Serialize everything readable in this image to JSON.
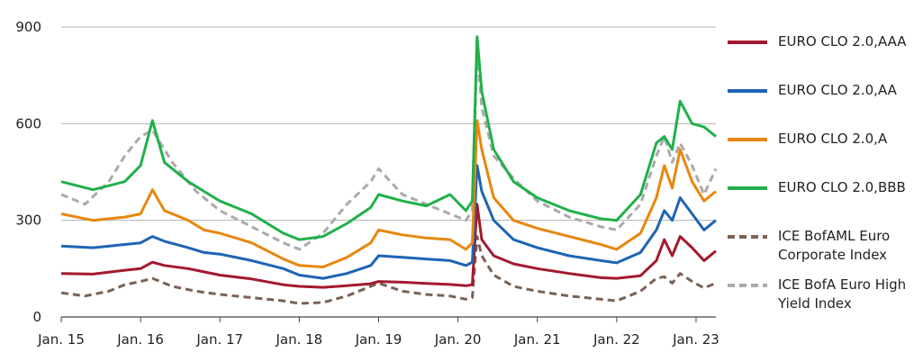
{
  "chart_data": {
    "type": "line",
    "x_tick_labels": [
      "Jan. 15",
      "Jan. 16",
      "Jan. 17",
      "Jan. 18",
      "Jan. 19",
      "Jan. 20",
      "Jan. 21",
      "Jan. 22",
      "Jan. 23"
    ],
    "x_range": [
      2015.0,
      2023.25
    ],
    "y_ticks": [
      0,
      300,
      600,
      900
    ],
    "ylim": [
      0,
      900
    ],
    "grid": "horizontal",
    "legend_position": "right",
    "series": [
      {
        "name": "EURO CLO 2.0,AAA",
        "color": "#a3192f",
        "dash": "solid",
        "points": [
          [
            2015.0,
            135
          ],
          [
            2015.4,
            133
          ],
          [
            2015.8,
            145
          ],
          [
            2016.0,
            150
          ],
          [
            2016.15,
            170
          ],
          [
            2016.3,
            160
          ],
          [
            2016.6,
            150
          ],
          [
            2016.8,
            140
          ],
          [
            2017.0,
            130
          ],
          [
            2017.4,
            118
          ],
          [
            2017.8,
            100
          ],
          [
            2018.0,
            95
          ],
          [
            2018.3,
            92
          ],
          [
            2018.6,
            97
          ],
          [
            2018.9,
            103
          ],
          [
            2019.0,
            110
          ],
          [
            2019.3,
            108
          ],
          [
            2019.6,
            104
          ],
          [
            2019.9,
            101
          ],
          [
            2020.1,
            97
          ],
          [
            2020.18,
            100
          ],
          [
            2020.24,
            350
          ],
          [
            2020.3,
            240
          ],
          [
            2020.45,
            190
          ],
          [
            2020.7,
            165
          ],
          [
            2021.0,
            150
          ],
          [
            2021.4,
            135
          ],
          [
            2021.8,
            122
          ],
          [
            2022.0,
            120
          ],
          [
            2022.3,
            128
          ],
          [
            2022.5,
            175
          ],
          [
            2022.6,
            240
          ],
          [
            2022.7,
            190
          ],
          [
            2022.8,
            250
          ],
          [
            2022.95,
            215
          ],
          [
            2023.1,
            175
          ],
          [
            2023.25,
            205
          ]
        ]
      },
      {
        "name": "EURO CLO 2.0,AA",
        "color": "#1e64b4",
        "dash": "solid",
        "points": [
          [
            2015.0,
            220
          ],
          [
            2015.4,
            215
          ],
          [
            2015.8,
            225
          ],
          [
            2016.0,
            230
          ],
          [
            2016.15,
            250
          ],
          [
            2016.3,
            235
          ],
          [
            2016.6,
            215
          ],
          [
            2016.8,
            200
          ],
          [
            2017.0,
            195
          ],
          [
            2017.4,
            175
          ],
          [
            2017.8,
            150
          ],
          [
            2018.0,
            130
          ],
          [
            2018.3,
            120
          ],
          [
            2018.6,
            135
          ],
          [
            2018.9,
            160
          ],
          [
            2019.0,
            190
          ],
          [
            2019.3,
            185
          ],
          [
            2019.6,
            180
          ],
          [
            2019.9,
            175
          ],
          [
            2020.1,
            160
          ],
          [
            2020.18,
            170
          ],
          [
            2020.24,
            470
          ],
          [
            2020.3,
            390
          ],
          [
            2020.45,
            300
          ],
          [
            2020.7,
            240
          ],
          [
            2021.0,
            215
          ],
          [
            2021.4,
            190
          ],
          [
            2021.8,
            175
          ],
          [
            2022.0,
            168
          ],
          [
            2022.3,
            200
          ],
          [
            2022.5,
            270
          ],
          [
            2022.6,
            330
          ],
          [
            2022.7,
            300
          ],
          [
            2022.8,
            370
          ],
          [
            2022.95,
            320
          ],
          [
            2023.1,
            270
          ],
          [
            2023.25,
            300
          ]
        ]
      },
      {
        "name": "EURO CLO 2.0,A",
        "color": "#e8870f",
        "dash": "solid",
        "points": [
          [
            2015.0,
            320
          ],
          [
            2015.4,
            300
          ],
          [
            2015.8,
            310
          ],
          [
            2016.0,
            320
          ],
          [
            2016.15,
            395
          ],
          [
            2016.3,
            330
          ],
          [
            2016.6,
            300
          ],
          [
            2016.8,
            270
          ],
          [
            2017.0,
            260
          ],
          [
            2017.4,
            230
          ],
          [
            2017.8,
            180
          ],
          [
            2018.0,
            160
          ],
          [
            2018.3,
            155
          ],
          [
            2018.6,
            185
          ],
          [
            2018.9,
            230
          ],
          [
            2019.0,
            270
          ],
          [
            2019.3,
            255
          ],
          [
            2019.6,
            245
          ],
          [
            2019.9,
            240
          ],
          [
            2020.1,
            210
          ],
          [
            2020.18,
            230
          ],
          [
            2020.24,
            610
          ],
          [
            2020.3,
            520
          ],
          [
            2020.45,
            370
          ],
          [
            2020.7,
            300
          ],
          [
            2021.0,
            275
          ],
          [
            2021.4,
            250
          ],
          [
            2021.8,
            225
          ],
          [
            2022.0,
            210
          ],
          [
            2022.3,
            260
          ],
          [
            2022.5,
            370
          ],
          [
            2022.6,
            470
          ],
          [
            2022.7,
            400
          ],
          [
            2022.8,
            520
          ],
          [
            2022.95,
            420
          ],
          [
            2023.1,
            360
          ],
          [
            2023.25,
            390
          ]
        ]
      },
      {
        "name": "EURO CLO 2.0,BBB",
        "color": "#21b04b",
        "dash": "solid",
        "points": [
          [
            2015.0,
            420
          ],
          [
            2015.4,
            395
          ],
          [
            2015.8,
            420
          ],
          [
            2016.0,
            470
          ],
          [
            2016.15,
            610
          ],
          [
            2016.3,
            480
          ],
          [
            2016.6,
            420
          ],
          [
            2016.8,
            390
          ],
          [
            2017.0,
            360
          ],
          [
            2017.4,
            320
          ],
          [
            2017.8,
            260
          ],
          [
            2018.0,
            240
          ],
          [
            2018.3,
            250
          ],
          [
            2018.6,
            290
          ],
          [
            2018.9,
            340
          ],
          [
            2019.0,
            380
          ],
          [
            2019.3,
            360
          ],
          [
            2019.6,
            345
          ],
          [
            2019.9,
            380
          ],
          [
            2020.1,
            330
          ],
          [
            2020.18,
            360
          ],
          [
            2020.24,
            870
          ],
          [
            2020.3,
            700
          ],
          [
            2020.45,
            520
          ],
          [
            2020.7,
            420
          ],
          [
            2021.0,
            370
          ],
          [
            2021.4,
            330
          ],
          [
            2021.8,
            305
          ],
          [
            2022.0,
            300
          ],
          [
            2022.3,
            380
          ],
          [
            2022.5,
            540
          ],
          [
            2022.6,
            560
          ],
          [
            2022.7,
            520
          ],
          [
            2022.8,
            670
          ],
          [
            2022.95,
            600
          ],
          [
            2023.1,
            590
          ],
          [
            2023.25,
            560
          ]
        ]
      },
      {
        "name": "ICE BofAML Euro Corporate Index",
        "color": "#7a6254",
        "dash": "dashed",
        "points": [
          [
            2015.0,
            75
          ],
          [
            2015.3,
            65
          ],
          [
            2015.6,
            80
          ],
          [
            2015.8,
            100
          ],
          [
            2016.0,
            110
          ],
          [
            2016.15,
            120
          ],
          [
            2016.4,
            95
          ],
          [
            2016.7,
            80
          ],
          [
            2017.0,
            70
          ],
          [
            2017.4,
            60
          ],
          [
            2017.8,
            50
          ],
          [
            2018.0,
            42
          ],
          [
            2018.3,
            45
          ],
          [
            2018.6,
            65
          ],
          [
            2018.9,
            95
          ],
          [
            2019.0,
            105
          ],
          [
            2019.3,
            80
          ],
          [
            2019.6,
            70
          ],
          [
            2019.9,
            65
          ],
          [
            2020.1,
            55
          ],
          [
            2020.18,
            60
          ],
          [
            2020.24,
            250
          ],
          [
            2020.3,
            190
          ],
          [
            2020.45,
            130
          ],
          [
            2020.7,
            95
          ],
          [
            2021.0,
            80
          ],
          [
            2021.4,
            65
          ],
          [
            2021.8,
            55
          ],
          [
            2022.0,
            50
          ],
          [
            2022.3,
            80
          ],
          [
            2022.5,
            120
          ],
          [
            2022.6,
            125
          ],
          [
            2022.7,
            105
          ],
          [
            2022.8,
            135
          ],
          [
            2022.95,
            110
          ],
          [
            2023.1,
            90
          ],
          [
            2023.25,
            105
          ]
        ]
      },
      {
        "name": "ICE BofA Euro High Yield Index",
        "color": "#aaaaaa",
        "dash": "dashed",
        "points": [
          [
            2015.0,
            380
          ],
          [
            2015.3,
            350
          ],
          [
            2015.6,
            420
          ],
          [
            2015.8,
            500
          ],
          [
            2016.0,
            560
          ],
          [
            2016.15,
            580
          ],
          [
            2016.4,
            480
          ],
          [
            2016.7,
            390
          ],
          [
            2017.0,
            330
          ],
          [
            2017.4,
            280
          ],
          [
            2017.8,
            230
          ],
          [
            2018.0,
            210
          ],
          [
            2018.3,
            260
          ],
          [
            2018.6,
            350
          ],
          [
            2018.9,
            420
          ],
          [
            2019.0,
            460
          ],
          [
            2019.3,
            380
          ],
          [
            2019.6,
            350
          ],
          [
            2019.9,
            320
          ],
          [
            2020.1,
            300
          ],
          [
            2020.18,
            330
          ],
          [
            2020.24,
            830
          ],
          [
            2020.3,
            650
          ],
          [
            2020.45,
            500
          ],
          [
            2020.7,
            430
          ],
          [
            2021.0,
            360
          ],
          [
            2021.4,
            310
          ],
          [
            2021.8,
            280
          ],
          [
            2022.0,
            270
          ],
          [
            2022.3,
            350
          ],
          [
            2022.5,
            500
          ],
          [
            2022.6,
            560
          ],
          [
            2022.7,
            480
          ],
          [
            2022.8,
            540
          ],
          [
            2022.95,
            470
          ],
          [
            2023.1,
            380
          ],
          [
            2023.25,
            460
          ]
        ]
      }
    ]
  }
}
